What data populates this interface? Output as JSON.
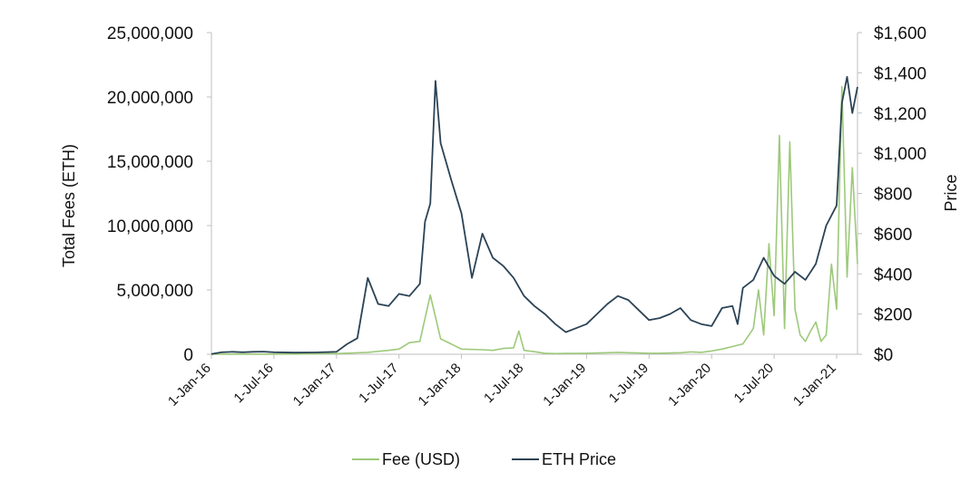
{
  "chart_data": {
    "type": "line",
    "title": "",
    "xlabel": "",
    "ylabel": "Total Fees (ETH)",
    "y2label": "Price",
    "ylim": [
      0,
      25000000
    ],
    "y2lim": [
      0,
      1600
    ],
    "x_tick_labels": [
      "1-Jan-16",
      "1-Jul-16",
      "1-Jan-17",
      "1-Jul-17",
      "1-Jan-18",
      "1-Jul-18",
      "1-Jan-19",
      "1-Jul-19",
      "1-Jan-20",
      "1-Jul-20",
      "1-Jan-21"
    ],
    "y_tick_labels": [
      "0",
      "5,000,000",
      "10,000,000",
      "15,000,000",
      "20,000,000",
      "25,000,000"
    ],
    "y2_tick_labels": [
      "$0",
      "$200",
      "$400",
      "$600",
      "$800",
      "$1,000",
      "$1,200",
      "$1,400",
      "$1,600"
    ],
    "legend": [
      "Fee (USD)",
      "ETH Price"
    ],
    "legend_position": "bottom-center",
    "series": [
      {
        "name": "Fee (USD)",
        "axis": "left",
        "color": "#9dc97a",
        "x": [
          0,
          3,
          6,
          9,
          12,
          15,
          17,
          18,
          19,
          20,
          21,
          22,
          24,
          26,
          27,
          28,
          29,
          29.5,
          30,
          31,
          32,
          33,
          34,
          36,
          37,
          38,
          39,
          40,
          41,
          42,
          43,
          44,
          45,
          46,
          47,
          48,
          49,
          50,
          51,
          52,
          52.5,
          53,
          53.5,
          54,
          54.5,
          55,
          55.5,
          56,
          56.5,
          57,
          57.5,
          58,
          58.5,
          59,
          59.5,
          60,
          60.5,
          61,
          61.5,
          62
        ],
        "values": [
          0,
          5000,
          10000,
          20000,
          50000,
          150000,
          300000,
          400000,
          900000,
          1000000,
          4600000,
          1200000,
          400000,
          350000,
          300000,
          450000,
          500000,
          1800000,
          300000,
          200000,
          80000,
          50000,
          60000,
          80000,
          100000,
          120000,
          150000,
          120000,
          100000,
          80000,
          80000,
          100000,
          120000,
          180000,
          150000,
          250000,
          400000,
          600000,
          800000,
          2000000,
          5000000,
          1500000,
          8600000,
          3000000,
          17000000,
          2000000,
          16500000,
          3500000,
          1500000,
          1000000,
          1800000,
          2500000,
          1000000,
          1500000,
          7000000,
          3500000,
          20800000,
          6000000,
          14500000,
          7000000
        ]
      },
      {
        "name": "ETH Price",
        "axis": "right",
        "color": "#2b4356",
        "x": [
          0,
          1,
          2,
          3,
          4,
          5,
          6,
          8,
          10,
          12,
          13,
          14,
          15,
          16,
          17,
          18,
          19,
          20,
          20.5,
          21,
          21.5,
          22,
          23,
          24,
          25,
          26,
          27,
          28,
          29,
          30,
          31,
          32,
          33,
          34,
          35,
          36,
          37,
          38,
          39,
          40,
          41,
          42,
          43,
          44,
          45,
          46,
          47,
          48,
          49,
          50,
          50.5,
          51,
          52,
          53,
          54,
          55,
          56,
          57,
          58,
          59,
          60,
          60.5,
          61,
          61.5,
          62
        ],
        "values": [
          1,
          10,
          12,
          10,
          12,
          13,
          10,
          8,
          9,
          12,
          50,
          80,
          380,
          250,
          240,
          300,
          290,
          350,
          660,
          750,
          1360,
          1050,
          870,
          700,
          380,
          600,
          480,
          440,
          380,
          290,
          240,
          200,
          150,
          110,
          130,
          150,
          200,
          250,
          290,
          270,
          220,
          170,
          180,
          200,
          230,
          170,
          150,
          140,
          230,
          240,
          150,
          330,
          370,
          480,
          390,
          350,
          410,
          370,
          450,
          640,
          740,
          1250,
          1380,
          1200,
          1330
        ]
      }
    ]
  }
}
